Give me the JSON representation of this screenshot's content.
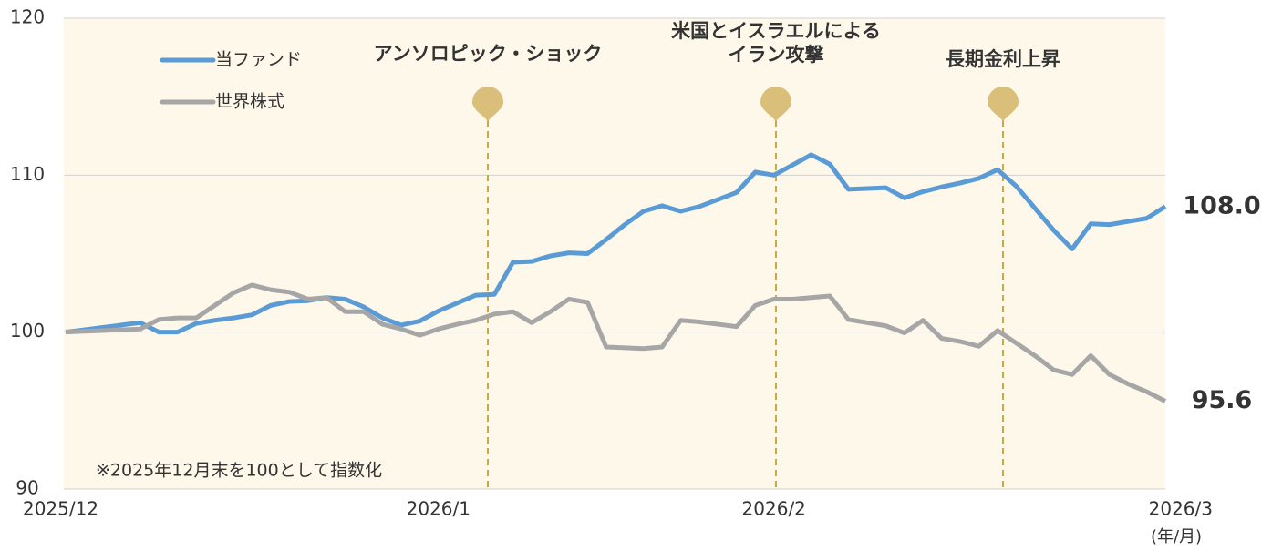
{
  "chart_data": {
    "type": "line",
    "categories": [
      "2025/12",
      null,
      null,
      null,
      null,
      null,
      null,
      null,
      null,
      null,
      null,
      null,
      null,
      null,
      null,
      null,
      null,
      null,
      null,
      null,
      "2026/1",
      null,
      null,
      null,
      null,
      null,
      null,
      null,
      null,
      null,
      null,
      null,
      null,
      null,
      null,
      null,
      null,
      null,
      "2026/2",
      null,
      null,
      null,
      null,
      null,
      null,
      null,
      null,
      null,
      null,
      null,
      null,
      null,
      null,
      null,
      null,
      null,
      null,
      null,
      null,
      "2026/3"
    ],
    "series": [
      {
        "name": "当ファンド",
        "color": "#5b9bd5",
        "values": [
          100,
          100.15,
          100.3,
          100.45,
          100.6,
          100.0,
          100.0,
          100.55,
          100.75,
          100.9,
          101.1,
          101.7,
          101.95,
          102.0,
          102.2,
          102.1,
          101.6,
          100.9,
          100.45,
          100.7,
          101.35,
          101.85,
          102.35,
          102.4,
          104.45,
          104.5,
          104.85,
          105.05,
          105.0,
          105.9,
          106.85,
          107.7,
          108.05,
          107.7,
          108.0,
          108.45,
          108.9,
          110.2,
          110.0,
          110.65,
          111.3,
          110.7,
          109.1,
          109.15,
          109.2,
          108.55,
          108.95,
          109.25,
          109.5,
          109.8,
          110.35,
          109.3,
          107.9,
          106.5,
          105.3,
          106.9,
          106.85,
          107.05,
          107.25,
          108.0
        ],
        "value_labels": [
          null,
          null,
          null,
          null,
          null,
          null,
          null,
          null,
          null,
          null,
          null,
          null,
          null,
          null,
          null,
          null,
          null,
          null,
          null,
          null,
          null,
          null,
          null,
          null,
          null,
          null,
          null,
          null,
          null,
          null,
          null,
          null,
          null,
          null,
          null,
          null,
          null,
          null,
          null,
          null,
          null,
          null,
          null,
          null,
          null,
          null,
          null,
          null,
          null,
          null,
          null,
          null,
          null,
          null,
          null,
          null,
          null,
          null,
          null,
          "108.0"
        ]
      },
      {
        "name": "世界株式",
        "color": "#a6a6a6",
        "values": [
          100,
          100.05,
          100.1,
          100.15,
          100.2,
          100.8,
          100.9,
          100.9,
          101.7,
          102.5,
          103.0,
          102.7,
          102.55,
          102.1,
          102.2,
          101.3,
          101.3,
          100.5,
          100.2,
          99.8,
          100.2,
          100.5,
          100.75,
          101.15,
          101.3,
          100.6,
          101.3,
          102.1,
          101.9,
          99.05,
          99.0,
          98.95,
          99.05,
          100.75,
          100.65,
          100.5,
          100.35,
          101.7,
          102.1,
          102.1,
          102.2,
          102.3,
          100.8,
          100.6,
          100.4,
          99.95,
          100.75,
          99.6,
          99.4,
          99.1,
          100.1,
          99.3,
          98.5,
          97.6,
          97.3,
          98.5,
          97.3,
          96.7,
          96.2,
          95.6
        ],
        "value_labels": [
          null,
          null,
          null,
          null,
          null,
          null,
          null,
          null,
          null,
          null,
          null,
          null,
          null,
          null,
          null,
          null,
          null,
          null,
          null,
          null,
          null,
          null,
          null,
          null,
          null,
          null,
          null,
          null,
          null,
          null,
          null,
          null,
          null,
          null,
          null,
          null,
          null,
          null,
          null,
          null,
          null,
          null,
          null,
          null,
          null,
          null,
          null,
          null,
          null,
          null,
          null,
          null,
          null,
          null,
          null,
          null,
          null,
          null,
          null,
          "95.6"
        ]
      }
    ],
    "ylim": [
      90,
      120
    ],
    "yticks": [
      90,
      100,
      110,
      120
    ],
    "grid": true,
    "x_unit": "(年/月)",
    "note": "※2025年12月末を100として指数化",
    "events": [
      "アンソロピック・ショック",
      "米国とイスラエルによる\nイラン攻撃",
      "長期金利上昇"
    ],
    "legend": "upper left"
  }
}
